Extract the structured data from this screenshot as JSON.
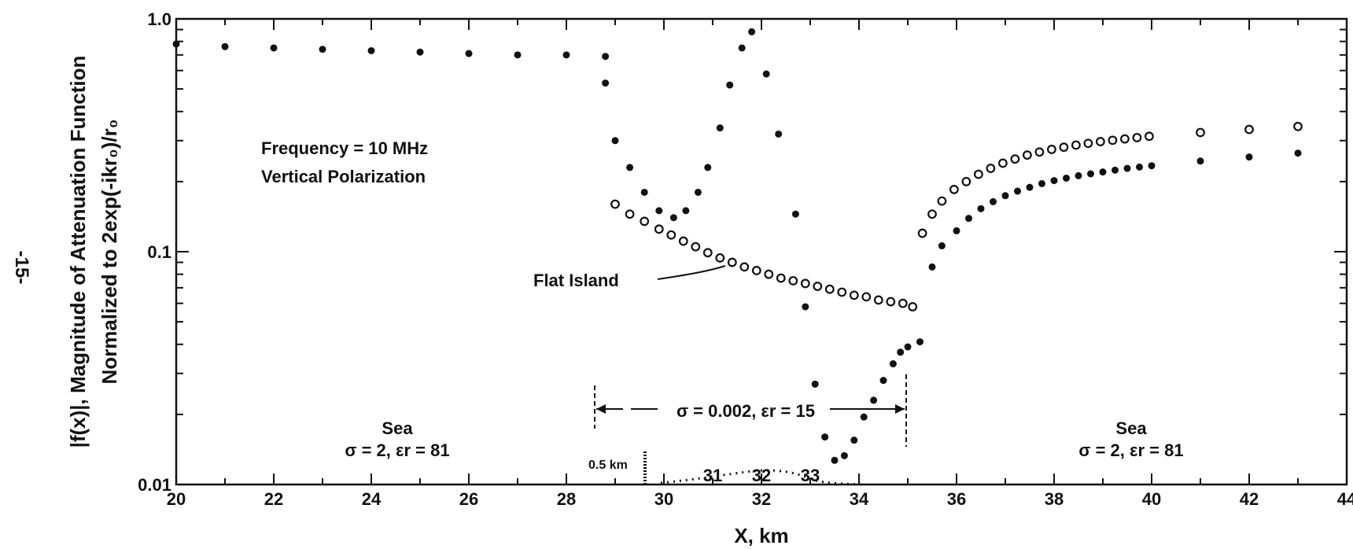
{
  "page_number": "-15-",
  "chart_data": {
    "type": "scatter",
    "title": "",
    "xlabel": "X, km",
    "ylabel_line1": "|f(x)|, Magnitude of Attenuation Function",
    "ylabel_line2": "Normalized to 2exp(-ikr₀)/r₀",
    "xlim": [
      20,
      44
    ],
    "ylim": [
      0.01,
      1.0
    ],
    "y_scale": "log",
    "grid": false,
    "x_ticks": [
      20,
      22,
      24,
      26,
      28,
      30,
      32,
      34,
      36,
      38,
      40,
      42,
      44
    ],
    "x_tick_labels": [
      "20",
      "22",
      "24",
      "26",
      "28",
      "30",
      "32",
      "34",
      "36",
      "38",
      "40",
      "42",
      "44"
    ],
    "y_tick_labels": [
      "1.0",
      "0.1",
      "0.01"
    ],
    "y_ticks": [
      1.0,
      0.1,
      0.01
    ],
    "inset_x_labels": [
      {
        "x": 31,
        "label": "31"
      },
      {
        "x": 32,
        "label": "32"
      },
      {
        "x": 33,
        "label": "33"
      }
    ],
    "annotations": {
      "frequency": "Frequency = 10 MHz",
      "polarization": "Vertical Polarization",
      "flat_island": "Flat Island",
      "island_params": "σ = 0.002, εr = 15",
      "sea_left_title": "Sea",
      "sea_left_params": "σ = 2, εr = 81",
      "sea_right_title": "Sea",
      "sea_right_params": "σ = 2, εr = 81",
      "scale_bar": "0.5 km"
    },
    "island_region_km": [
      28.6,
      35.0
    ],
    "series": [
      {
        "marker": "filled",
        "x": [
          20,
          21,
          22,
          23,
          24,
          25,
          26,
          27,
          28,
          28.8,
          28.8,
          29.0,
          29.3,
          29.6,
          29.9,
          30.2,
          30.45,
          30.7,
          30.9,
          31.15,
          31.35,
          31.6,
          31.8,
          32.1,
          32.35,
          32.7,
          32.9,
          33.1,
          33.3,
          33.5,
          33.7,
          33.9,
          34.1,
          34.3,
          34.5,
          34.7,
          34.85,
          35.0,
          35.25,
          35.5,
          35.7,
          36.0,
          36.25,
          36.5,
          36.75,
          37.0,
          37.25,
          37.5,
          37.75,
          38.0,
          38.25,
          38.5,
          38.75,
          39.0,
          39.25,
          39.5,
          39.75,
          40.0,
          41.0,
          42.0,
          43.0
        ],
        "y": [
          0.78,
          0.76,
          0.75,
          0.74,
          0.73,
          0.72,
          0.71,
          0.7,
          0.7,
          0.69,
          0.53,
          0.3,
          0.23,
          0.18,
          0.15,
          0.14,
          0.15,
          0.18,
          0.23,
          0.34,
          0.52,
          0.75,
          0.88,
          0.58,
          0.32,
          0.145,
          0.058,
          0.027,
          0.016,
          0.0127,
          0.0133,
          0.0155,
          0.0195,
          0.023,
          0.028,
          0.033,
          0.037,
          0.039,
          0.041,
          0.086,
          0.106,
          0.123,
          0.139,
          0.153,
          0.164,
          0.174,
          0.182,
          0.189,
          0.196,
          0.202,
          0.207,
          0.212,
          0.216,
          0.22,
          0.224,
          0.228,
          0.231,
          0.234,
          0.245,
          0.255,
          0.265
        ]
      },
      {
        "marker": "open",
        "x": [
          29.0,
          29.3,
          29.6,
          29.9,
          30.15,
          30.4,
          30.65,
          30.9,
          31.15,
          31.4,
          31.65,
          31.9,
          32.15,
          32.4,
          32.65,
          32.9,
          33.15,
          33.4,
          33.65,
          33.9,
          34.15,
          34.4,
          34.65,
          34.9,
          35.1,
          35.3,
          35.5,
          35.7,
          35.95,
          36.2,
          36.45,
          36.7,
          36.95,
          37.2,
          37.45,
          37.7,
          37.95,
          38.2,
          38.45,
          38.7,
          38.95,
          39.2,
          39.45,
          39.7,
          39.95,
          41.0,
          42.0,
          43.0
        ],
        "y": [
          0.16,
          0.145,
          0.135,
          0.125,
          0.118,
          0.111,
          0.105,
          0.099,
          0.094,
          0.09,
          0.086,
          0.083,
          0.08,
          0.077,
          0.075,
          0.073,
          0.071,
          0.069,
          0.067,
          0.065,
          0.064,
          0.062,
          0.061,
          0.06,
          0.058,
          0.12,
          0.145,
          0.165,
          0.185,
          0.2,
          0.215,
          0.228,
          0.24,
          0.25,
          0.26,
          0.268,
          0.275,
          0.281,
          0.287,
          0.292,
          0.297,
          0.301,
          0.305,
          0.309,
          0.313,
          0.325,
          0.335,
          0.345
        ]
      }
    ]
  }
}
